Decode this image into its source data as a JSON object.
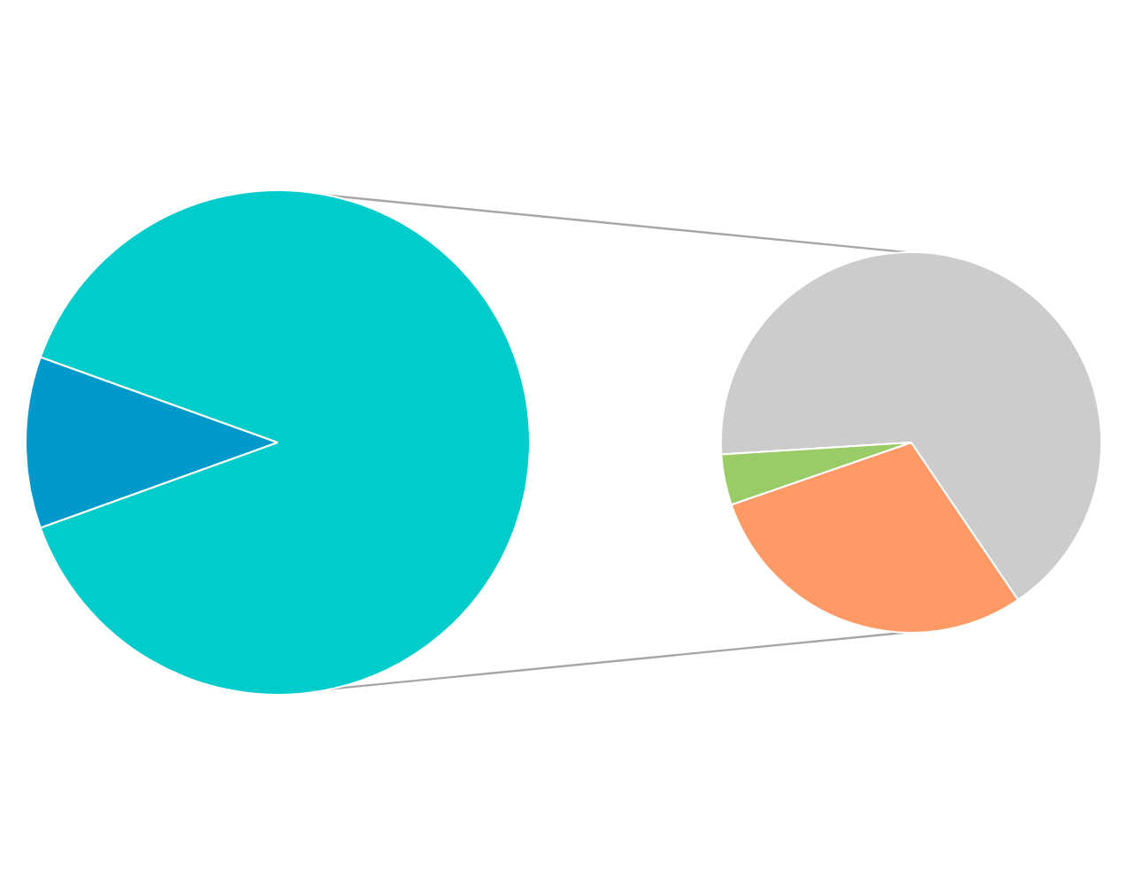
{
  "chart_data": [
    {
      "type": "pie",
      "categories": [
        null,
        null
      ],
      "values": [
        11,
        89
      ],
      "colors": [
        "#0099cc",
        "#00cccc"
      ]
    },
    {
      "type": "pie",
      "categories": [
        null,
        null,
        null
      ],
      "values": [
        66.5,
        29.2,
        4.3
      ],
      "colors": [
        "#cccccc",
        "#ff9966",
        "#99cc66"
      ]
    }
  ]
}
